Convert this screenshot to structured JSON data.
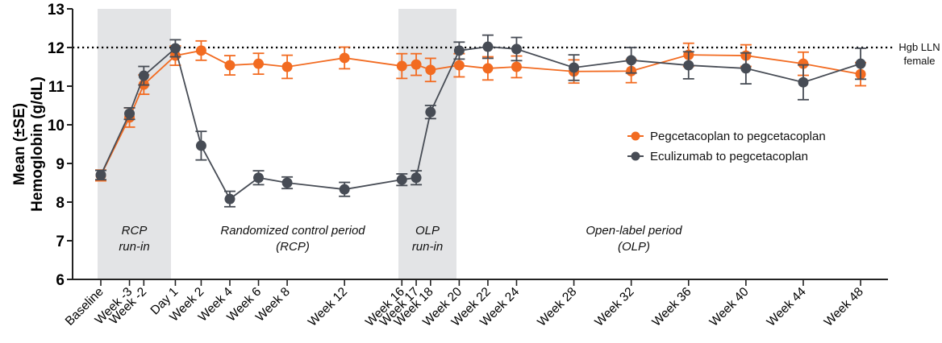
{
  "chart_data": {
    "type": "line",
    "title": "",
    "ylabel_line1": "Mean (±SE)",
    "ylabel_line2": "Hemoglobin (g/dL)",
    "xlabel": "",
    "ylim": [
      6,
      13
    ],
    "yticks": [
      6,
      7,
      8,
      9,
      10,
      11,
      12,
      13
    ],
    "grid": false,
    "legend_position": "right",
    "categories": [
      "Baseline",
      "Week -3",
      "Week -2",
      "Day 1",
      "Week 2",
      "Week 4",
      "Week 6",
      "Week 8",
      "Week 12",
      "Week 16",
      "Week 17",
      "Week 18",
      "Week 20",
      "Week 22",
      "Week 24",
      "Week 28",
      "Week 32",
      "Week 36",
      "Week 40",
      "Week 44",
      "Week 48"
    ],
    "x_week": [
      -4,
      -3,
      -2.5,
      -1.4,
      -0.5,
      0.5,
      1.5,
      2.5,
      4.5,
      6.5,
      7,
      7.5,
      8.5,
      9.5,
      10.5,
      12.5,
      14.5,
      16.5,
      18.5,
      20.5,
      22.5
    ],
    "series": [
      {
        "name": "Pegcetacoplan to pegcetacoplan",
        "color": "#f26b21",
        "values": [
          8.69,
          10.19,
          11.04,
          11.79,
          11.92,
          11.54,
          11.58,
          11.5,
          11.73,
          11.52,
          11.56,
          11.42,
          11.54,
          11.46,
          11.5,
          11.38,
          11.39,
          11.81,
          11.79,
          11.58,
          11.31
        ],
        "se": [
          0.14,
          0.25,
          0.25,
          0.25,
          0.25,
          0.25,
          0.27,
          0.3,
          0.28,
          0.32,
          0.28,
          0.3,
          0.3,
          0.3,
          0.28,
          0.3,
          0.3,
          0.3,
          0.28,
          0.3,
          0.3
        ]
      },
      {
        "name": "Eculizumab to pegcetacoplan",
        "color": "#474c55",
        "values": [
          8.7,
          10.29,
          11.27,
          11.98,
          9.46,
          8.08,
          8.63,
          8.5,
          8.33,
          8.58,
          8.63,
          10.33,
          11.92,
          12.02,
          11.96,
          11.48,
          11.67,
          11.54,
          11.46,
          11.1,
          11.58
        ],
        "se": [
          0.12,
          0.15,
          0.24,
          0.22,
          0.37,
          0.2,
          0.18,
          0.15,
          0.18,
          0.15,
          0.18,
          0.17,
          0.22,
          0.3,
          0.3,
          0.33,
          0.33,
          0.35,
          0.4,
          0.45,
          0.4
        ]
      }
    ],
    "reference_line": {
      "value": 12,
      "label_line1": "Hgb LLN",
      "label_line2": "female",
      "style": "dotted"
    },
    "shaded_regions": [
      {
        "from": "Baseline",
        "to": "Day 1",
        "label_line1": "RCP",
        "label_line2": "run-in"
      },
      {
        "from": "Week 16",
        "to": "Week 20",
        "label_line1": "OLP",
        "label_line2": "run-in"
      }
    ],
    "annotations": [
      {
        "text_line1": "Randomized control period",
        "text_line2": "(RCP)",
        "at": "Week 8"
      },
      {
        "text_line1": "Open-label period",
        "text_line2": "(OLP)",
        "at": "Week 30"
      }
    ]
  }
}
